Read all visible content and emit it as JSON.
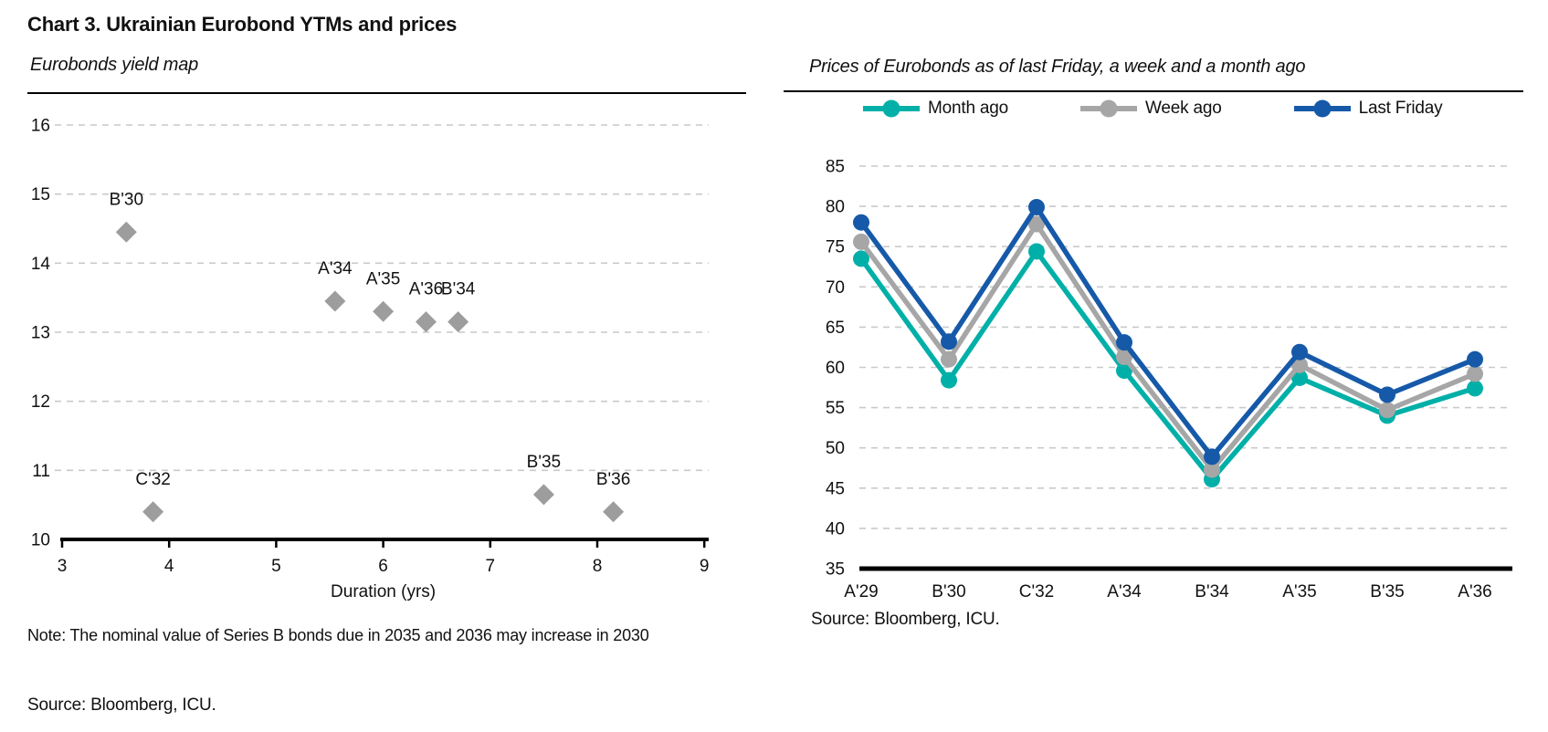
{
  "page": {
    "title": "Chart 3. Ukrainian Eurobond YTMs and prices"
  },
  "left_panel": {
    "subtitle": "Eurobonds yield map",
    "note": "Note: The nominal value of Series B bonds due in 2035 and 2036 may increase in 2030",
    "source": "Source: Bloomberg, ICU."
  },
  "right_panel": {
    "subtitle": "Prices of Eurobonds as of last Friday, a week and a month ago",
    "source": "Source: Bloomberg, ICU."
  },
  "colors": {
    "month_ago": "#00B0A8",
    "week_ago": "#A6A6A6",
    "last_friday": "#1659A8",
    "scatter_marker": "#9D9D9D",
    "gridline": "#C9C9C9",
    "axis": "#000000",
    "text": "#111111"
  },
  "chart_data": [
    {
      "id": "yield-map",
      "type": "scatter",
      "title": "Eurobonds yield map",
      "xlabel": "Duration (yrs)",
      "ylabel": "",
      "xlim": [
        3,
        9
      ],
      "ylim": [
        10,
        16
      ],
      "xticks": [
        3,
        4,
        5,
        6,
        7,
        8,
        9
      ],
      "yticks": [
        10,
        11,
        12,
        13,
        14,
        15,
        16
      ],
      "grid": "horizontal-dashed",
      "legend_position": "none",
      "marker": "diamond",
      "points": [
        {
          "label": "B'30",
          "x": 3.6,
          "y": 14.45
        },
        {
          "label": "C'32",
          "x": 3.85,
          "y": 10.4
        },
        {
          "label": "A'34",
          "x": 5.55,
          "y": 13.45
        },
        {
          "label": "A'35",
          "x": 6.0,
          "y": 13.3
        },
        {
          "label": "A'36",
          "x": 6.4,
          "y": 13.15
        },
        {
          "label": "B'34",
          "x": 6.7,
          "y": 13.15
        },
        {
          "label": "B'35",
          "x": 7.5,
          "y": 10.65
        },
        {
          "label": "B'36",
          "x": 8.15,
          "y": 10.4
        }
      ]
    },
    {
      "id": "prices",
      "type": "line",
      "title": "Prices of Eurobonds as of last Friday, a week and a month ago",
      "categories": [
        "A'29",
        "B'30",
        "C'32",
        "A'34",
        "B'34",
        "A'35",
        "B'35",
        "A'36"
      ],
      "series": [
        {
          "name": "Month ago",
          "color": "#00B0A8",
          "values": [
            73.5,
            58.4,
            74.4,
            59.6,
            46.1,
            58.7,
            54.0,
            57.4
          ]
        },
        {
          "name": "Week ago",
          "color": "#A6A6A6",
          "values": [
            75.6,
            61.0,
            77.8,
            61.3,
            47.3,
            60.3,
            54.7,
            59.2
          ]
        },
        {
          "name": "Last Friday",
          "color": "#1659A8",
          "values": [
            78.0,
            63.2,
            79.9,
            63.1,
            48.9,
            61.9,
            56.6,
            61.0
          ]
        }
      ],
      "ylim": [
        35,
        85
      ],
      "yticks": [
        35,
        40,
        45,
        50,
        55,
        60,
        65,
        70,
        75,
        80,
        85
      ],
      "grid": "horizontal-dashed",
      "legend_position": "top"
    }
  ]
}
